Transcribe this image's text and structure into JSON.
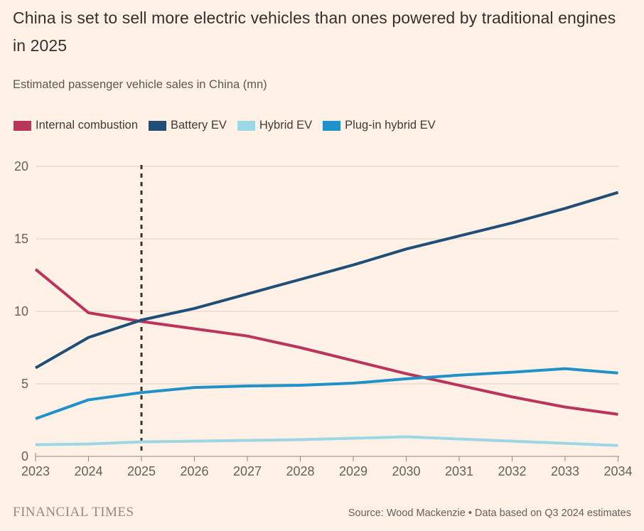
{
  "header": {
    "title": "China is set to sell more electric vehicles than ones powered by traditional engines in 2025",
    "subtitle": "Estimated passenger vehicle sales in China (mn)"
  },
  "chart_data": {
    "type": "line",
    "x": [
      2023,
      2024,
      2025,
      2026,
      2027,
      2028,
      2029,
      2030,
      2031,
      2032,
      2033,
      2034
    ],
    "series": [
      {
        "name": "Internal combustion",
        "color": "#BB345C",
        "values": [
          12.9,
          9.9,
          9.3,
          8.8,
          8.3,
          7.5,
          6.6,
          5.7,
          4.9,
          4.1,
          3.4,
          2.9
        ]
      },
      {
        "name": "Battery EV",
        "color": "#1F4E79",
        "values": [
          6.1,
          8.2,
          9.4,
          10.2,
          11.2,
          12.2,
          13.2,
          14.3,
          15.2,
          16.1,
          17.1,
          18.2
        ]
      },
      {
        "name": "Hybrid EV",
        "color": "#9CD7E5",
        "values": [
          0.8,
          0.85,
          1.0,
          1.05,
          1.1,
          1.15,
          1.25,
          1.35,
          1.2,
          1.05,
          0.9,
          0.75
        ]
      },
      {
        "name": "Plug-in hybrid EV",
        "color": "#2191C9",
        "values": [
          2.6,
          3.9,
          4.4,
          4.75,
          4.85,
          4.9,
          5.05,
          5.35,
          5.6,
          5.8,
          6.05,
          5.75
        ]
      }
    ],
    "ylim": [
      0,
      20
    ],
    "yticks": [
      0,
      5,
      10,
      15,
      20
    ],
    "xlabel": "",
    "ylabel": "Estimated passenger vehicle sales in China (mn)",
    "grid": true,
    "legend_position": "top",
    "annotation": {
      "type": "vertical-dashed-line",
      "x": 2025
    }
  },
  "footer": {
    "brand": "FINANCIAL TIMES",
    "source": "Source: Wood Mackenzie • Data based on Q3 2024 estimates"
  },
  "colors": {
    "background": "#FFF1E5",
    "title_text": "#33302E",
    "axis_text": "#66605B",
    "gridline": "#DCCFC2",
    "baseline": "#8F867C",
    "dashed_line": "#38322C"
  }
}
